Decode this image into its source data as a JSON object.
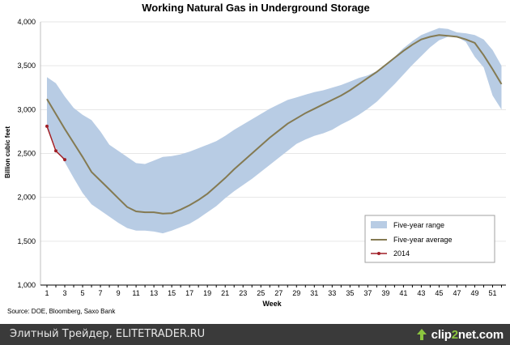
{
  "chart_data": {
    "type": "area",
    "title": "Working Natural Gas in Underground Storage",
    "xlabel": "Week",
    "ylabel": "Billion cubic feet",
    "source": "Source: DOE, Bloomberg, Saxo Bank",
    "xlim": [
      1,
      52
    ],
    "ylim": [
      1000,
      4000
    ],
    "x_ticks": [
      1,
      3,
      5,
      7,
      9,
      11,
      13,
      15,
      17,
      19,
      21,
      23,
      25,
      27,
      29,
      31,
      33,
      35,
      37,
      39,
      41,
      43,
      45,
      47,
      49,
      51
    ],
    "y_ticks": [
      1000,
      1500,
      2000,
      2500,
      3000,
      3500,
      4000
    ],
    "y_tick_labels": [
      "1,000",
      "1,500",
      "2,000",
      "2,500",
      "3,000",
      "3,500",
      "4,000"
    ],
    "grid": "horizontal",
    "legend_position": "bottom-right",
    "series": [
      {
        "name": "Five-year range",
        "kind": "band",
        "color": "#b8cce4",
        "x": [
          1,
          2,
          3,
          4,
          5,
          6,
          7,
          8,
          9,
          10,
          11,
          12,
          13,
          14,
          15,
          16,
          17,
          18,
          19,
          20,
          21,
          22,
          23,
          24,
          25,
          26,
          27,
          28,
          29,
          30,
          31,
          32,
          33,
          34,
          35,
          36,
          37,
          38,
          39,
          40,
          41,
          42,
          43,
          44,
          45,
          46,
          47,
          48,
          49,
          50,
          51,
          52
        ],
        "low": [
          2820,
          2560,
          2400,
          2220,
          2050,
          1920,
          1850,
          1780,
          1710,
          1650,
          1620,
          1620,
          1610,
          1590,
          1620,
          1660,
          1700,
          1760,
          1830,
          1900,
          1990,
          2070,
          2140,
          2210,
          2290,
          2370,
          2450,
          2530,
          2610,
          2660,
          2700,
          2730,
          2770,
          2830,
          2880,
          2940,
          3010,
          3090,
          3190,
          3290,
          3400,
          3510,
          3610,
          3710,
          3790,
          3830,
          3830,
          3770,
          3600,
          3480,
          3160,
          3000
        ],
        "high": [
          3370,
          3300,
          3150,
          3020,
          2940,
          2880,
          2750,
          2600,
          2530,
          2460,
          2390,
          2380,
          2420,
          2460,
          2470,
          2490,
          2520,
          2560,
          2600,
          2640,
          2700,
          2770,
          2830,
          2890,
          2950,
          3010,
          3060,
          3110,
          3140,
          3170,
          3200,
          3220,
          3250,
          3280,
          3320,
          3360,
          3390,
          3440,
          3520,
          3600,
          3700,
          3780,
          3850,
          3890,
          3930,
          3920,
          3880,
          3870,
          3850,
          3800,
          3680,
          3500
        ]
      },
      {
        "name": "Five-year average",
        "kind": "line",
        "color": "#847a52",
        "x": [
          1,
          2,
          3,
          4,
          5,
          6,
          7,
          8,
          9,
          10,
          11,
          12,
          13,
          14,
          15,
          16,
          17,
          18,
          19,
          20,
          21,
          22,
          23,
          24,
          25,
          26,
          27,
          28,
          29,
          30,
          31,
          32,
          33,
          34,
          35,
          36,
          37,
          38,
          39,
          40,
          41,
          42,
          43,
          44,
          45,
          46,
          47,
          48,
          49,
          50,
          51,
          52
        ],
        "values": [
          3120,
          2950,
          2780,
          2620,
          2460,
          2290,
          2190,
          2090,
          1990,
          1890,
          1840,
          1830,
          1830,
          1815,
          1820,
          1860,
          1910,
          1970,
          2040,
          2130,
          2220,
          2320,
          2410,
          2500,
          2590,
          2680,
          2760,
          2840,
          2900,
          2960,
          3010,
          3060,
          3110,
          3160,
          3220,
          3290,
          3360,
          3430,
          3510,
          3590,
          3670,
          3740,
          3800,
          3830,
          3850,
          3840,
          3830,
          3800,
          3760,
          3620,
          3460,
          3290
        ]
      },
      {
        "name": "2014",
        "kind": "line-markers",
        "color": "#a01f26",
        "x": [
          1,
          2,
          3
        ],
        "values": [
          2810,
          2530,
          2430
        ]
      }
    ]
  },
  "footer": {
    "caption": "Элитный Трейдер, ELITETRADER.RU",
    "logo_prefix": "clip",
    "logo_accent": "2",
    "logo_suffix": "net",
    "logo_tld": ".com"
  }
}
